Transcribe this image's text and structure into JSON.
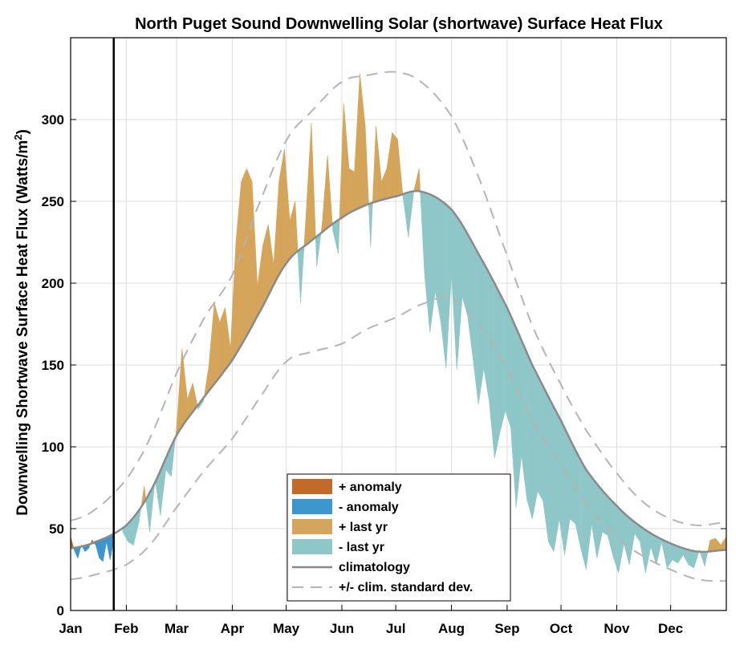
{
  "chart_data": {
    "type": "area",
    "title": "North Puget Sound Downwelling Solar (shortwave) Surface Heat Flux",
    "ylabel": "Downwelling Shortwave Surface Heat Flux (Watts/m",
    "ylabel_sup": "2",
    "ylabel_close": ")",
    "ylim": [
      0,
      350
    ],
    "xlim": [
      1,
      366
    ],
    "yticks": [
      0,
      50,
      100,
      150,
      200,
      250,
      300
    ],
    "grid": true,
    "month_labels": [
      "Jan",
      "Feb",
      "Mar",
      "Apr",
      "May",
      "Jun",
      "Jul",
      "Aug",
      "Sep",
      "Oct",
      "Nov",
      "Dec"
    ],
    "month_days": [
      1,
      32,
      60,
      91,
      121,
      152,
      182,
      213,
      244,
      274,
      305,
      335
    ],
    "current_day_marker": 25,
    "climatology": {
      "days": [
        1,
        15,
        32,
        45,
        60,
        75,
        91,
        105,
        121,
        135,
        152,
        166,
        182,
        196,
        213,
        228,
        244,
        258,
        274,
        288,
        305,
        320,
        335,
        350,
        366
      ],
      "values": [
        38,
        42,
        52,
        72,
        107,
        130,
        153,
        180,
        212,
        226,
        240,
        248,
        253,
        256,
        245,
        218,
        185,
        150,
        116,
        86,
        64,
        50,
        41,
        36,
        37
      ]
    },
    "std_upper": {
      "days": [
        1,
        15,
        32,
        45,
        60,
        75,
        91,
        105,
        121,
        135,
        152,
        166,
        182,
        196,
        213,
        228,
        244,
        258,
        274,
        288,
        305,
        320,
        335,
        350,
        366
      ],
      "values": [
        55,
        62,
        80,
        105,
        145,
        178,
        205,
        246,
        287,
        305,
        323,
        327,
        329,
        323,
        302,
        265,
        217,
        174,
        138,
        110,
        84,
        66,
        56,
        52,
        54
      ]
    },
    "std_lower": {
      "days": [
        1,
        15,
        32,
        45,
        60,
        75,
        91,
        105,
        121,
        135,
        152,
        166,
        182,
        196,
        213,
        228,
        244,
        258,
        274,
        288,
        305,
        320,
        335,
        350,
        366
      ],
      "values": [
        19,
        22,
        28,
        40,
        63,
        85,
        105,
        128,
        152,
        158,
        163,
        172,
        179,
        187,
        191,
        175,
        148,
        116,
        89,
        65,
        45,
        33,
        25,
        19,
        18
      ]
    },
    "last_year": {
      "days": [
        30,
        33,
        36,
        39,
        42,
        45,
        48,
        51,
        54,
        57,
        60,
        63,
        66,
        69,
        72,
        75,
        78,
        81,
        84,
        87,
        90,
        93,
        96,
        99,
        102,
        105,
        108,
        111,
        114,
        117,
        120,
        123,
        126,
        129,
        132,
        135,
        138,
        141,
        144,
        147,
        150,
        153,
        156,
        159,
        162,
        165,
        168,
        171,
        174,
        177,
        180,
        183,
        186,
        189,
        192,
        195,
        198,
        201,
        204,
        207,
        210,
        213,
        216,
        219,
        222,
        225,
        228,
        231,
        234,
        237,
        240,
        243,
        246,
        249,
        252,
        255,
        258,
        261,
        264,
        267,
        270,
        273,
        276,
        279,
        282,
        285,
        288,
        291,
        294,
        297,
        300,
        303,
        306,
        309,
        312,
        315,
        318,
        321,
        324,
        327,
        330,
        333,
        336,
        339,
        342,
        345,
        348,
        351,
        354,
        357,
        360,
        363,
        366
      ],
      "values": [
        48,
        42,
        40,
        54,
        76,
        48,
        80,
        58,
        86,
        82,
        112,
        160,
        129,
        139,
        123,
        128,
        150,
        188,
        176,
        185,
        160,
        225,
        262,
        270,
        262,
        198,
        223,
        236,
        211,
        262,
        282,
        238,
        250,
        188,
        241,
        298,
        210,
        236,
        278,
        232,
        218,
        310,
        270,
        268,
        328,
        296,
        222,
        296,
        262,
        270,
        292,
        288,
        253,
        228,
        256,
        270,
        206,
        170,
        195,
        177,
        148,
        206,
        147,
        192,
        180,
        154,
        126,
        148,
        128,
        93,
        109,
        122,
        112,
        63,
        95,
        68,
        56,
        73,
        67,
        42,
        36,
        56,
        34,
        56,
        53,
        38,
        25,
        53,
        32,
        48,
        46,
        33,
        23,
        41,
        28,
        47,
        42,
        23,
        39,
        28,
        42,
        26,
        31,
        29,
        34,
        28,
        26,
        37,
        27,
        43,
        44,
        40,
        45
      ]
    },
    "this_year": {
      "days": [
        1,
        3,
        5,
        7,
        9,
        11,
        13,
        15,
        17,
        19,
        21,
        23,
        25
      ],
      "values": [
        45,
        37,
        32,
        40,
        36,
        38,
        43,
        40,
        32,
        30,
        42,
        31,
        43
      ]
    },
    "colors": {
      "pos_anomaly": "#c26a2a",
      "neg_anomaly": "#3d97cc",
      "pos_last_yr": "#d4a55a",
      "neg_last_yr": "#8fc7c8",
      "climatology": "#8a8a8a",
      "std_dev": "#b4b4b4",
      "grid": "#dcdcdc",
      "marker": "#000000"
    },
    "legend": {
      "position": "bottom-center",
      "entries": [
        "+ anomaly",
        "- anomaly",
        "+ last yr",
        "- last yr",
        "climatology",
        "+/- clim. standard dev."
      ]
    }
  }
}
